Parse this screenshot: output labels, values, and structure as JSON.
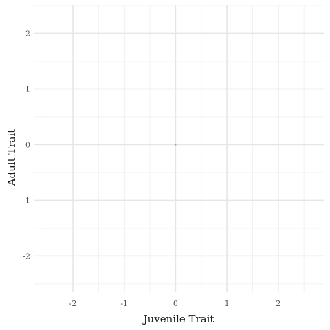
{
  "chart_data": {
    "type": "scatter",
    "title": "",
    "xlabel": "Juvenile Trait",
    "ylabel": "Adult Trait",
    "xlim": [
      -2.75,
      2.9
    ],
    "ylim": [
      -2.65,
      2.5
    ],
    "x_ticks": [
      -2,
      -1,
      0,
      1,
      2
    ],
    "y_ticks": [
      -2,
      -1,
      0,
      1,
      2
    ],
    "x_tick_labels": [
      "-2",
      "-1",
      "0",
      "1",
      "2"
    ],
    "y_tick_labels": [
      "-2",
      "-1",
      "0",
      "1",
      "2"
    ],
    "grid": true,
    "legend": "none",
    "points": [
      {
        "x": 0,
        "y": 0
      }
    ],
    "colors": {
      "point": "#f08040",
      "grid_major": "#e6e6e6",
      "grid_minor": "#f0f0f0",
      "tick_label": "#4d4d4d",
      "axis_title": "#1a1a1a"
    }
  }
}
